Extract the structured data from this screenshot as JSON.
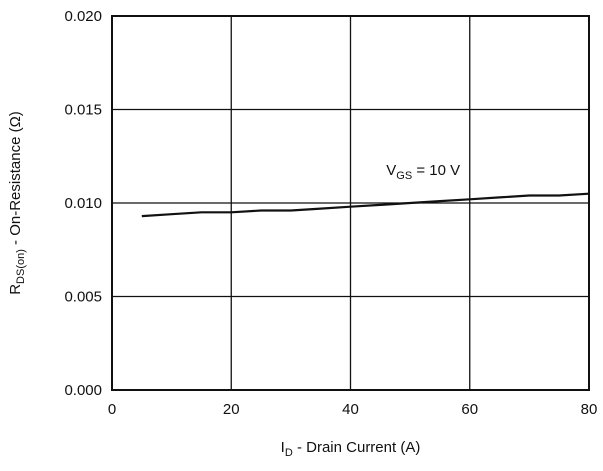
{
  "chart_data": {
    "type": "line",
    "xlabel": {
      "main": "I",
      "sub": "D",
      "rest": " - Drain Current (A)"
    },
    "ylabel": {
      "main": "R",
      "sub": "DS(on)",
      "rest": " - On-Resistance (Ω)"
    },
    "xlim": [
      0,
      80
    ],
    "ylim": [
      0.0,
      0.02
    ],
    "x_ticks": [
      "0",
      "20",
      "40",
      "60",
      "80"
    ],
    "y_ticks": [
      "0.000",
      "0.005",
      "0.010",
      "0.015",
      "0.020"
    ],
    "grid": true,
    "annotation": {
      "main": "V",
      "sub": "GS",
      "rest": " = 10 V",
      "x": 46,
      "y": 0.0115
    },
    "series": [
      {
        "x": [
          5,
          10,
          15,
          20,
          25,
          30,
          35,
          40,
          45,
          50,
          55,
          60,
          65,
          70,
          75,
          80
        ],
        "y": [
          0.0093,
          0.0094,
          0.0095,
          0.0095,
          0.0096,
          0.0096,
          0.0097,
          0.0098,
          0.0099,
          0.01,
          0.0101,
          0.0102,
          0.0103,
          0.0104,
          0.0104,
          0.0105
        ]
      }
    ]
  }
}
